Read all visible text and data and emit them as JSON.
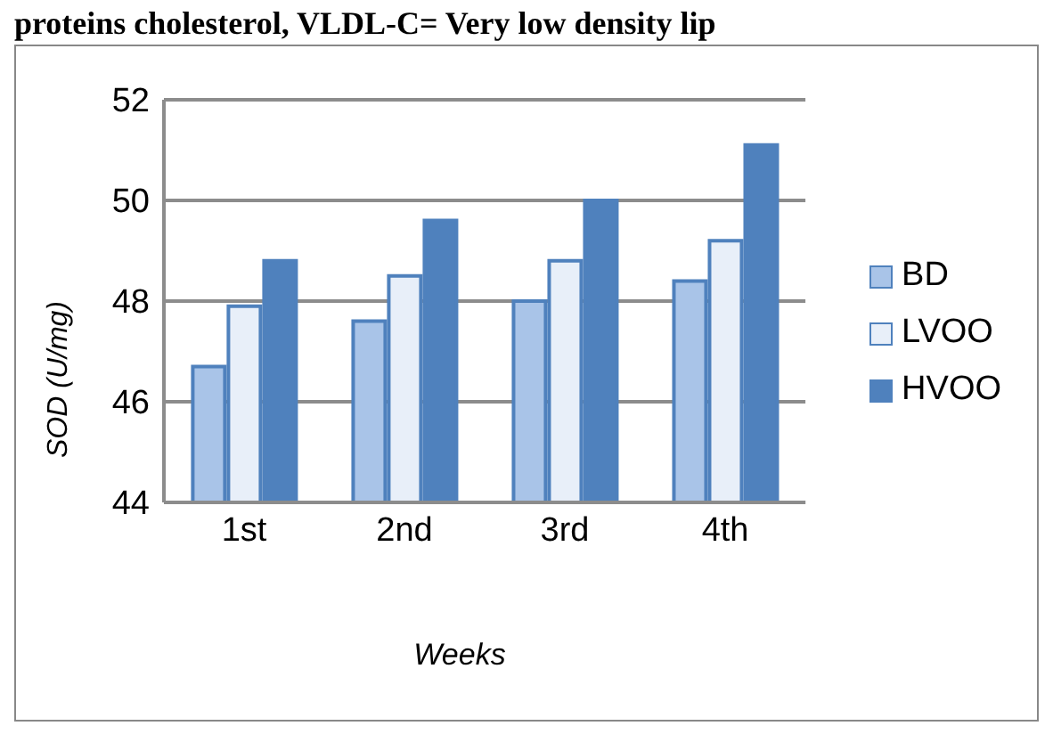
{
  "chart_data": {
    "type": "bar",
    "annotations": [
      "proteins cholesterol, VLDL-C= Very low density lip"
    ],
    "xlabel": "Weeks",
    "ylabel": "SOD  (U/mg)",
    "categories": [
      "1st",
      "2nd",
      "3rd",
      "4th"
    ],
    "series": [
      {
        "name": "BD",
        "color": "#a9c4e8",
        "values": [
          46.7,
          47.6,
          48.0,
          48.4
        ]
      },
      {
        "name": "LVOO",
        "color": "#e8eff9",
        "values": [
          47.9,
          48.5,
          48.8,
          49.2
        ]
      },
      {
        "name": "HVOO",
        "color": "#4f81bd",
        "values": [
          48.8,
          49.6,
          50.0,
          51.1
        ]
      }
    ],
    "ylim": [
      44,
      52
    ],
    "yticks": [
      44,
      46,
      48,
      50,
      52
    ],
    "grid": "y",
    "legend": "right"
  }
}
